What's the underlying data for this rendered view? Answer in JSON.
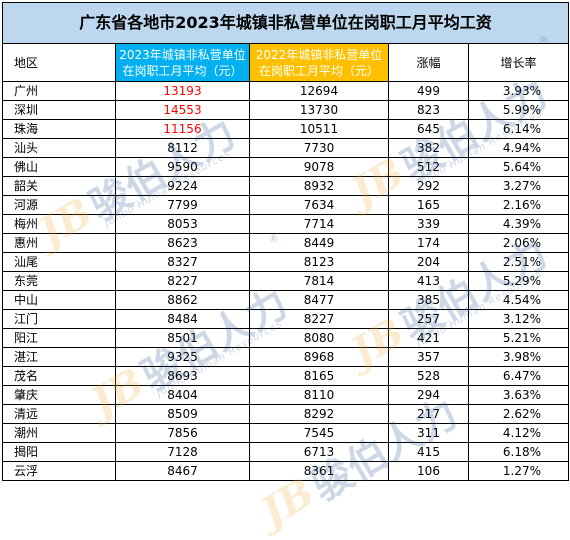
{
  "title": "广东省各地市2023年城镇非私营单位在岗职工月平均工资",
  "headers": {
    "region": "地区",
    "avg_2023": "2023年城镇非私营单位在岗职工月平均（元）",
    "avg_2022": "2022年城镇非私营单位在岗职工月平均（元）",
    "increase": "涨幅",
    "growth_rate": "增长率"
  },
  "colors": {
    "title_bg": "#bdd7ee",
    "header_2023_bg": "#00b0f0",
    "header_2022_bg": "#ffc000",
    "highlight_text": "#ff0000"
  },
  "rows": [
    {
      "region": "广州",
      "avg_2023": "13193",
      "avg_2022": "12694",
      "increase": "499",
      "growth_rate": "3.93%",
      "highlight": true
    },
    {
      "region": "深圳",
      "avg_2023": "14553",
      "avg_2022": "13730",
      "increase": "823",
      "growth_rate": "5.99%",
      "highlight": true
    },
    {
      "region": "珠海",
      "avg_2023": "11156",
      "avg_2022": "10511",
      "increase": "645",
      "growth_rate": "6.14%",
      "highlight": true
    },
    {
      "region": "汕头",
      "avg_2023": "8112",
      "avg_2022": "7730",
      "increase": "382",
      "growth_rate": "4.94%",
      "highlight": false
    },
    {
      "region": "佛山",
      "avg_2023": "9590",
      "avg_2022": "9078",
      "increase": "512",
      "growth_rate": "5.64%",
      "highlight": false
    },
    {
      "region": "韶关",
      "avg_2023": "9224",
      "avg_2022": "8932",
      "increase": "292",
      "growth_rate": "3.27%",
      "highlight": false
    },
    {
      "region": "河源",
      "avg_2023": "7799",
      "avg_2022": "7634",
      "increase": "165",
      "growth_rate": "2.16%",
      "highlight": false
    },
    {
      "region": "梅州",
      "avg_2023": "8053",
      "avg_2022": "7714",
      "increase": "339",
      "growth_rate": "4.39%",
      "highlight": false
    },
    {
      "region": "惠州",
      "avg_2023": "8623",
      "avg_2022": "8449",
      "increase": "174",
      "growth_rate": "2.06%",
      "highlight": false
    },
    {
      "region": "汕尾",
      "avg_2023": "8327",
      "avg_2022": "8123",
      "increase": "204",
      "growth_rate": "2.51%",
      "highlight": false
    },
    {
      "region": "东莞",
      "avg_2023": "8227",
      "avg_2022": "7814",
      "increase": "413",
      "growth_rate": "5.29%",
      "highlight": false
    },
    {
      "region": "中山",
      "avg_2023": "8862",
      "avg_2022": "8477",
      "increase": "385",
      "growth_rate": "4.54%",
      "highlight": false
    },
    {
      "region": "江门",
      "avg_2023": "8484",
      "avg_2022": "8227",
      "increase": "257",
      "growth_rate": "3.12%",
      "highlight": false
    },
    {
      "region": "阳江",
      "avg_2023": "8501",
      "avg_2022": "8080",
      "increase": "421",
      "growth_rate": "5.21%",
      "highlight": false
    },
    {
      "region": "湛江",
      "avg_2023": "9325",
      "avg_2022": "8968",
      "increase": "357",
      "growth_rate": "3.98%",
      "highlight": false
    },
    {
      "region": "茂名",
      "avg_2023": "8693",
      "avg_2022": "8165",
      "increase": "528",
      "growth_rate": "6.47%",
      "highlight": false
    },
    {
      "region": "肇庆",
      "avg_2023": "8404",
      "avg_2022": "8110",
      "increase": "294",
      "growth_rate": "3.63%",
      "highlight": false
    },
    {
      "region": "清远",
      "avg_2023": "8509",
      "avg_2022": "8292",
      "increase": "217",
      "growth_rate": "2.62%",
      "highlight": false
    },
    {
      "region": "潮州",
      "avg_2023": "7856",
      "avg_2022": "7545",
      "increase": "311",
      "growth_rate": "4.12%",
      "highlight": false
    },
    {
      "region": "揭阳",
      "avg_2023": "7128",
      "avg_2022": "6713",
      "increase": "415",
      "growth_rate": "6.18%",
      "highlight": false
    },
    {
      "region": "云浮",
      "avg_2023": "8467",
      "avg_2022": "8361",
      "increase": "106",
      "growth_rate": "1.27%",
      "highlight": false
    }
  ],
  "watermark": {
    "logo": "JB",
    "name": "骏伯人力",
    "subtitle": "Junbo Human Resources",
    "registered": "®"
  }
}
